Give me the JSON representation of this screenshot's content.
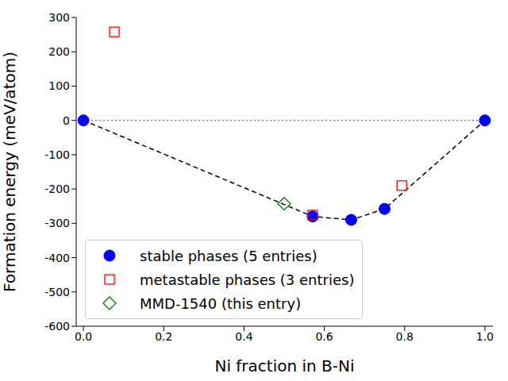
{
  "chart_data": {
    "type": "scatter",
    "x_label": "Ni fraction in B-Ni",
    "y_label": "Formation energy (meV/atom)",
    "xlim": [
      -0.018,
      1.02
    ],
    "xticks": [
      {
        "value": 0,
        "label": "0.0"
      },
      0.2,
      0.4,
      0.6,
      0.8,
      {
        "value": 1,
        "label": "1.0"
      }
    ],
    "ylim": [
      -600,
      300
    ],
    "yticks": [
      -600,
      -500,
      -400,
      -300,
      -200,
      -100,
      0,
      100,
      200,
      300
    ],
    "legend": "lower left",
    "reference_lines": [
      {
        "y": 0,
        "x": [
          0,
          1
        ],
        "color": "#808080",
        "line_style": "dotted"
      }
    ],
    "series": [
      {
        "name": "stable phases (5 entries)",
        "color": "#0000ff",
        "marker": "circle",
        "line_style": "dashed",
        "x": [
          0,
          0.571,
          0.667,
          0.75,
          1
        ],
        "values": [
          0,
          -280,
          -290,
          -258,
          0
        ]
      },
      {
        "name": "metastable phases (3 entries)",
        "color": "#ff0000",
        "marker": "square",
        "x": [
          0.077,
          0.571,
          0.793
        ],
        "values": [
          258,
          -276,
          -190
        ]
      },
      {
        "name": "MMD-1540 (this entry)",
        "color": "#008000",
        "marker": "diamond",
        "x": [
          0.5
        ],
        "values": [
          -243
        ]
      }
    ]
  }
}
